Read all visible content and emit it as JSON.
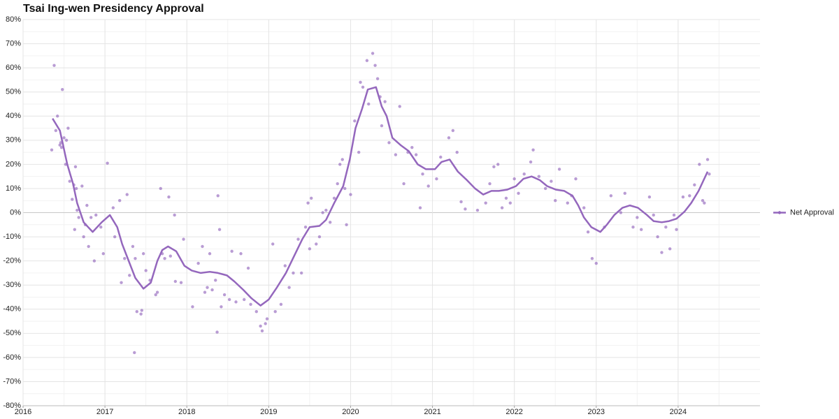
{
  "chart_data": {
    "type": "line",
    "title": "Tsai Ing-wen Presidency Approval",
    "xlim": [
      2016,
      2025
    ],
    "xticks": [
      2016,
      2017,
      2018,
      2019,
      2020,
      2021,
      2022,
      2023,
      2024
    ],
    "ylim": [
      -80,
      80
    ],
    "yticks": [
      {
        "value": -80,
        "label": "-80%"
      },
      {
        "value": -70,
        "label": "-70%"
      },
      {
        "value": -60,
        "label": "-60%"
      },
      {
        "value": -50,
        "label": "-50%"
      },
      {
        "value": -40,
        "label": "-40%"
      },
      {
        "value": -30,
        "label": "-30%"
      },
      {
        "value": -20,
        "label": "-20%"
      },
      {
        "value": -10,
        "label": "-10%"
      },
      {
        "value": 0,
        "label": "0%"
      },
      {
        "value": 10,
        "label": "10%"
      },
      {
        "value": 20,
        "label": "20%"
      },
      {
        "value": 30,
        "label": "30%"
      },
      {
        "value": 40,
        "label": "40%"
      },
      {
        "value": 50,
        "label": "50%"
      },
      {
        "value": 60,
        "label": "60%"
      },
      {
        "value": 70,
        "label": "70%"
      },
      {
        "value": 80,
        "label": "80%"
      }
    ],
    "grid": true,
    "legend": "right",
    "series": [
      {
        "name": "Net Approval",
        "color": "#9467bd",
        "x": [
          2016.36,
          2016.45,
          2016.54,
          2016.61,
          2016.66,
          2016.74,
          2016.85,
          2016.96,
          2017.06,
          2017.15,
          2017.21,
          2017.29,
          2017.37,
          2017.47,
          2017.56,
          2017.64,
          2017.7,
          2017.77,
          2017.87,
          2017.97,
          2018.06,
          2018.17,
          2018.28,
          2018.38,
          2018.49,
          2018.58,
          2018.69,
          2018.79,
          2018.9,
          2019.0,
          2019.1,
          2019.21,
          2019.31,
          2019.41,
          2019.5,
          2019.62,
          2019.7,
          2019.8,
          2019.91,
          2019.99,
          2020.06,
          2020.14,
          2020.21,
          2020.31,
          2020.38,
          2020.44,
          2020.51,
          2020.61,
          2020.71,
          2020.82,
          2020.92,
          2021.03,
          2021.11,
          2021.21,
          2021.31,
          2021.42,
          2021.52,
          2021.62,
          2021.72,
          2021.81,
          2021.91,
          2022.02,
          2022.11,
          2022.21,
          2022.31,
          2022.4,
          2022.51,
          2022.61,
          2022.71,
          2022.78,
          2022.85,
          2022.94,
          2023.05,
          2023.13,
          2023.22,
          2023.32,
          2023.41,
          2023.51,
          2023.62,
          2023.7,
          2023.8,
          2023.89,
          2023.98,
          2024.08,
          2024.16,
          2024.25,
          2024.36
        ],
        "values": [
          39,
          34,
          20,
          12,
          4,
          -4,
          -8,
          -4,
          -1,
          -6,
          -13,
          -20,
          -27,
          -31.5,
          -29,
          -20,
          -15.5,
          -14,
          -16,
          -22,
          -24,
          -25,
          -24.5,
          -25,
          -26,
          -28.5,
          -32,
          -35.5,
          -38.5,
          -36,
          -31,
          -25,
          -18,
          -11,
          -6,
          -5.5,
          -3,
          4,
          11,
          22,
          35,
          43,
          51,
          52,
          44,
          40,
          31,
          28,
          25.5,
          20,
          18,
          18,
          21,
          22,
          17,
          13.5,
          10,
          7.5,
          9,
          9,
          9.5,
          11,
          14,
          15,
          13.5,
          11,
          9.5,
          9,
          7,
          3,
          -2,
          -6,
          -8,
          -5,
          -1,
          2,
          3,
          2,
          -1,
          -3.5,
          -4,
          -3.5,
          -2.5,
          0.5,
          4,
          9,
          17
        ]
      }
    ],
    "points": {
      "color": "#9467bd",
      "x": [
        2016.35,
        2016.38,
        2016.4,
        2016.42,
        2016.45,
        2016.46,
        2016.47,
        2016.48,
        2016.5,
        2016.52,
        2016.53,
        2016.55,
        2016.57,
        2016.6,
        2016.62,
        2016.63,
        2016.64,
        2016.65,
        2016.66,
        2016.68,
        2016.72,
        2016.74,
        2016.76,
        2016.8,
        2016.78,
        2016.83,
        2016.87,
        2016.89,
        2016.95,
        2016.98,
        2017.03,
        2017.1,
        2017.12,
        2017.18,
        2017.2,
        2017.24,
        2017.27,
        2017.3,
        2017.34,
        2017.36,
        2017.37,
        2017.39,
        2017.44,
        2017.45,
        2017.47,
        2017.5,
        2017.55,
        2017.62,
        2017.64,
        2017.68,
        2017.7,
        2017.73,
        2017.78,
        2017.8,
        2017.85,
        2017.86,
        2017.93,
        2017.96,
        2018.07,
        2018.14,
        2018.19,
        2018.22,
        2018.25,
        2018.28,
        2018.31,
        2018.35,
        2018.37,
        2018.38,
        2018.4,
        2018.42,
        2018.46,
        2018.52,
        2018.55,
        2018.6,
        2018.66,
        2018.7,
        2018.75,
        2018.78,
        2018.85,
        2018.9,
        2018.92,
        2018.96,
        2018.98,
        2019.05,
        2019.08,
        2019.15,
        2019.2,
        2019.25,
        2019.3,
        2019.36,
        2019.4,
        2019.45,
        2019.48,
        2019.5,
        2019.52,
        2019.58,
        2019.62,
        2019.66,
        2019.7,
        2019.75,
        2019.8,
        2019.84,
        2019.87,
        2019.9,
        2019.93,
        2019.95,
        2020.0,
        2020.05,
        2020.1,
        2020.12,
        2020.15,
        2020.2,
        2020.22,
        2020.27,
        2020.3,
        2020.33,
        2020.36,
        2020.38,
        2020.42,
        2020.47,
        2020.55,
        2020.6,
        2020.65,
        2020.7,
        2020.75,
        2020.8,
        2020.85,
        2020.88,
        2020.95,
        2021.05,
        2021.1,
        2021.2,
        2021.25,
        2021.3,
        2021.35,
        2021.4,
        2021.55,
        2021.65,
        2021.7,
        2021.75,
        2021.8,
        2021.85,
        2021.9,
        2021.95,
        2022.0,
        2022.05,
        2022.12,
        2022.2,
        2022.23,
        2022.3,
        2022.38,
        2022.45,
        2022.5,
        2022.55,
        2022.65,
        2022.7,
        2022.75,
        2022.85,
        2022.9,
        2022.95,
        2023.0,
        2023.1,
        2023.18,
        2023.3,
        2023.35,
        2023.45,
        2023.5,
        2023.55,
        2023.65,
        2023.7,
        2023.75,
        2023.8,
        2023.85,
        2023.9,
        2023.95,
        2023.98,
        2024.06,
        2024.14,
        2024.2,
        2024.26,
        2024.3,
        2024.32,
        2024.36,
        2024.38
      ],
      "values": [
        26,
        61,
        34,
        40,
        28,
        29,
        27,
        51,
        31,
        20,
        30,
        35,
        13,
        5.5,
        11.5,
        -7,
        19,
        10,
        1,
        -2,
        11,
        -10,
        -5,
        -14,
        3,
        -2,
        -20,
        -1,
        -6,
        -17,
        20.5,
        2,
        -10,
        5,
        -29,
        -19,
        7.5,
        -26,
        -14,
        -58,
        -19,
        -41,
        -42,
        -40.5,
        -17,
        -24,
        -28,
        -34,
        -33,
        10,
        -17,
        -19,
        6.5,
        -18,
        -1,
        -28.5,
        -29,
        -11,
        -39,
        -21,
        -14,
        -33,
        -31,
        -17,
        -32,
        -28,
        -49.5,
        7,
        -7,
        -39,
        -34,
        -36,
        -16,
        -37,
        -17,
        -36,
        -23,
        -38,
        -41,
        -47,
        -49,
        -46,
        -44,
        -13,
        -41,
        -38,
        -22,
        -31,
        -25,
        -11,
        -25,
        -6,
        4,
        -15,
        6,
        -13,
        -10,
        0,
        1,
        -4,
        6,
        12,
        20,
        22,
        10,
        -5,
        7.5,
        38,
        25,
        54,
        52,
        63,
        45,
        66,
        61,
        55.5,
        48,
        36,
        46,
        29,
        24,
        44,
        12,
        25,
        27,
        24,
        2,
        16,
        11,
        14,
        23,
        31,
        34,
        25,
        4.5,
        1.5,
        1,
        4,
        12,
        19,
        20,
        2,
        6,
        4,
        14,
        8,
        16,
        21,
        26,
        15,
        10,
        13,
        5,
        18,
        4,
        7,
        14,
        2,
        -8,
        -19,
        -21,
        -6,
        7,
        0,
        8,
        -6,
        -2,
        -7,
        6.5,
        -1,
        -10,
        -16.5,
        -6,
        -15,
        -1,
        -7,
        6.5,
        7,
        11.5,
        20,
        5,
        4,
        22,
        16
      ]
    }
  }
}
